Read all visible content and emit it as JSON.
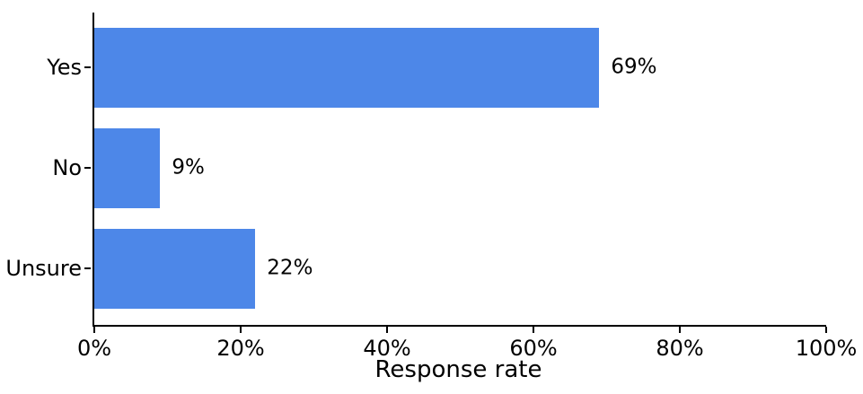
{
  "chart_data": {
    "type": "bar",
    "orientation": "horizontal",
    "title": "",
    "xlabel": "Response rate",
    "ylabel": "",
    "categories": [
      "Yes",
      "No",
      "Unsure"
    ],
    "values": [
      69,
      9,
      22
    ],
    "data_labels": [
      "69%",
      "9%",
      "22%"
    ],
    "xlim": [
      0,
      100
    ],
    "xticks": [
      0,
      20,
      40,
      60,
      80,
      100
    ],
    "xtick_labels": [
      "0%",
      "20%",
      "40%",
      "60%",
      "80%",
      "100%"
    ],
    "grid": false,
    "legend": null,
    "colors": {
      "bar": "#4d87e8",
      "axis": "#000000",
      "text": "#000000",
      "background": "#ffffff"
    }
  }
}
